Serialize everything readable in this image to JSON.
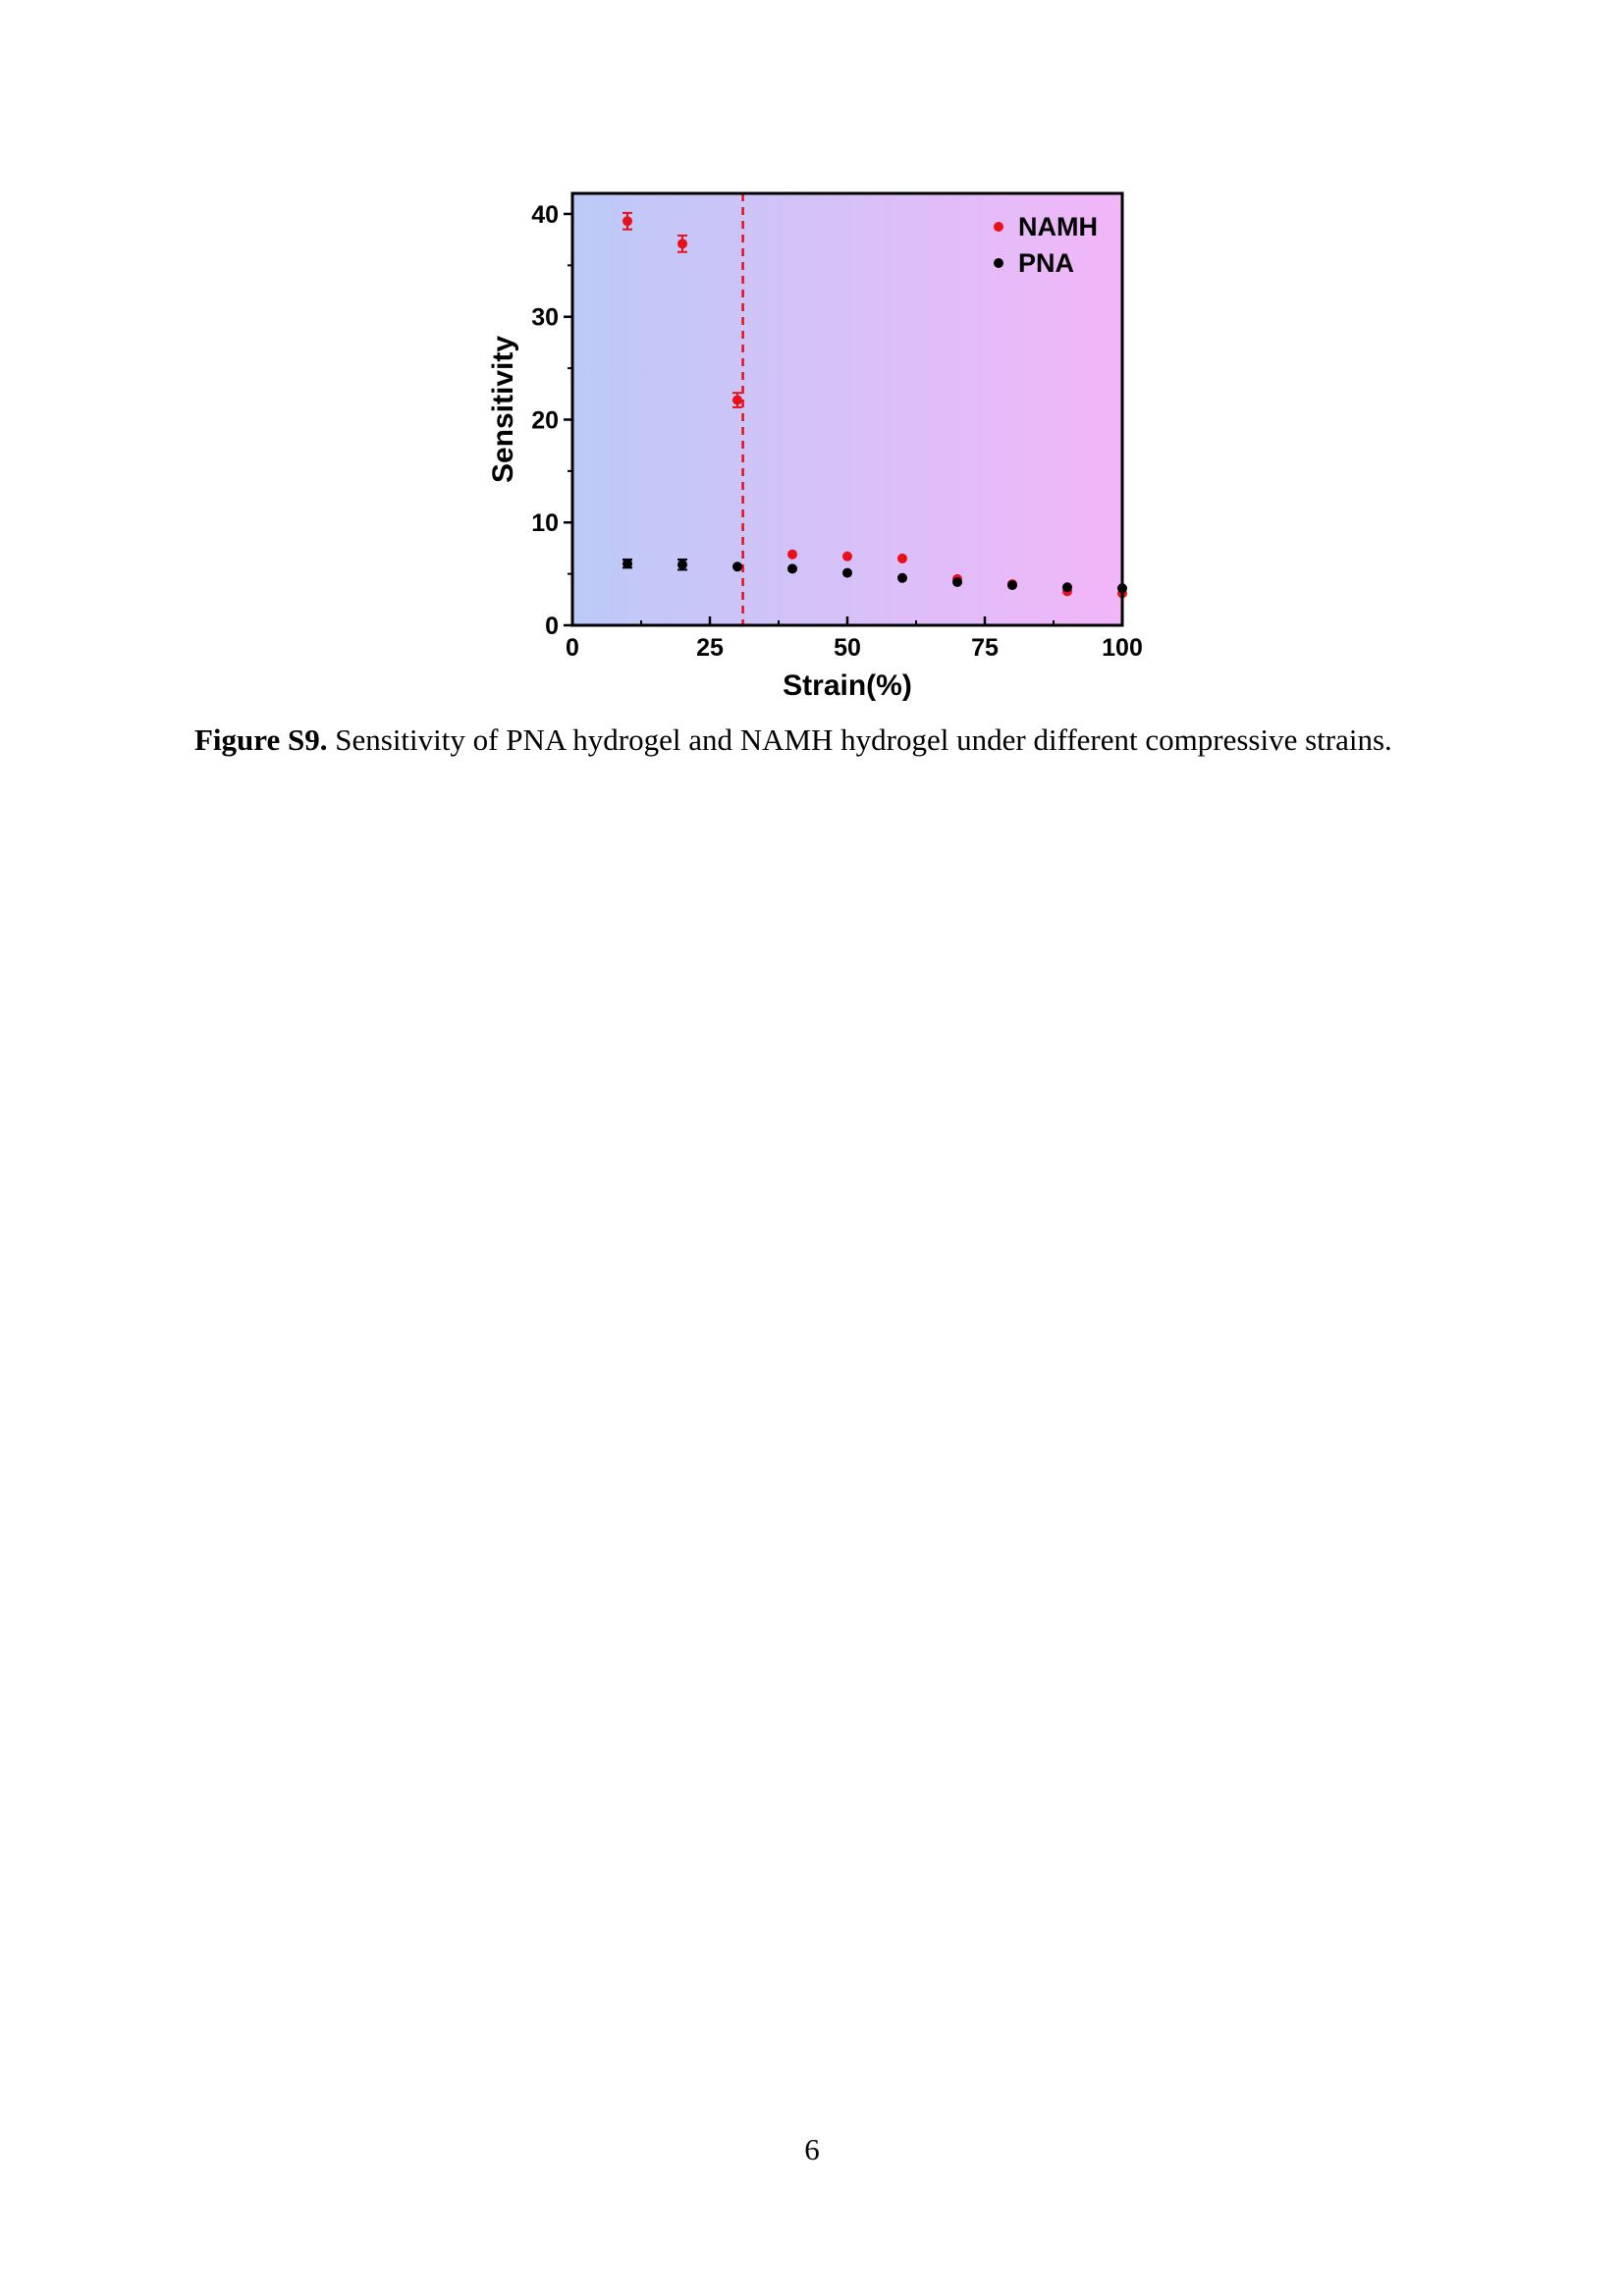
{
  "colors": {
    "namh": "#e8101a",
    "pna": "#000000",
    "divider_line": "#e3101a",
    "plot_bg_left": "#bccaf8",
    "plot_bg_right": "#f2b6f8"
  },
  "chart_data": {
    "type": "scatter",
    "title": "",
    "xlabel": "Strain(%)",
    "ylabel": "Sensitivity",
    "xlim": [
      0,
      100
    ],
    "ylim": [
      0,
      42
    ],
    "x_ticks": [
      0,
      25,
      50,
      75,
      100
    ],
    "y_ticks": [
      0,
      10,
      20,
      30,
      40
    ],
    "x_tick_labels": [
      "0",
      "25",
      "50",
      "75",
      "100"
    ],
    "y_tick_labels": [
      "0",
      "10",
      "20",
      "30",
      "40"
    ],
    "grid": false,
    "legend_position": "top-right",
    "background": "horizontal gradient from blue (left) to pink (right)",
    "vertical_dashed_line_x": 31,
    "series": [
      {
        "name": "NAMH",
        "color": "#e8101a",
        "x": [
          10,
          20,
          30,
          40,
          50,
          60,
          70,
          80,
          90,
          100
        ],
        "y": [
          39.3,
          37.1,
          21.9,
          6.9,
          6.7,
          6.5,
          4.5,
          4.0,
          3.3,
          3.1
        ],
        "error": [
          0.8,
          0.8,
          0.7,
          0.2,
          0.2,
          0.2,
          0.2,
          0.2,
          0.2,
          0.2
        ]
      },
      {
        "name": "PNA",
        "color": "#000000",
        "x": [
          10,
          20,
          30,
          40,
          50,
          60,
          70,
          80,
          90,
          100
        ],
        "y": [
          6.0,
          5.9,
          5.7,
          5.5,
          5.1,
          4.6,
          4.2,
          3.9,
          3.7,
          3.6
        ],
        "error": [
          0.4,
          0.5,
          0.2,
          0.2,
          0.2,
          0.2,
          0.2,
          0.2,
          0.2,
          0.2
        ]
      }
    ]
  },
  "caption": {
    "label": "Figure S9.",
    "text": " Sensitivity of PNA hydrogel and NAMH hydrogel under different compressive strains."
  },
  "page_number": "6"
}
